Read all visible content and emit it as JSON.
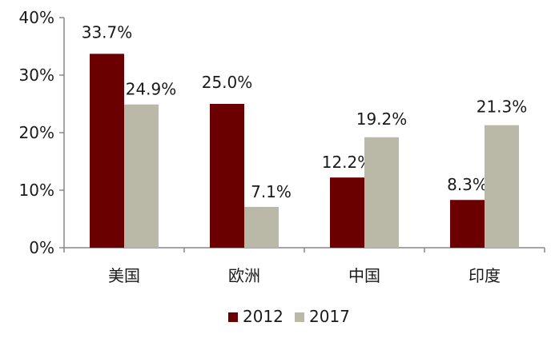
{
  "chart_data": {
    "type": "bar",
    "title": "",
    "xlabel": "",
    "ylabel": "",
    "categories": [
      "美国",
      "欧洲",
      "中国",
      "印度"
    ],
    "series": [
      {
        "name": "2012",
        "values": [
          33.7,
          25.0,
          12.2,
          8.3
        ],
        "labels": [
          "33.7%",
          "25.0%",
          "12.2%",
          "8.3%"
        ],
        "color": "#6b0000"
      },
      {
        "name": "2017",
        "values": [
          24.9,
          7.1,
          19.2,
          21.3
        ],
        "labels": [
          "24.9%",
          "7.1%",
          "19.2%",
          "21.3%"
        ],
        "color": "#bab8a6"
      }
    ],
    "ylim": [
      0,
      40
    ],
    "yticks": [
      0,
      10,
      20,
      30,
      40
    ],
    "ytick_labels": [
      "0%",
      "10%",
      "20%",
      "30%",
      "40%"
    ],
    "grid": false,
    "legend": "bottom-center"
  }
}
